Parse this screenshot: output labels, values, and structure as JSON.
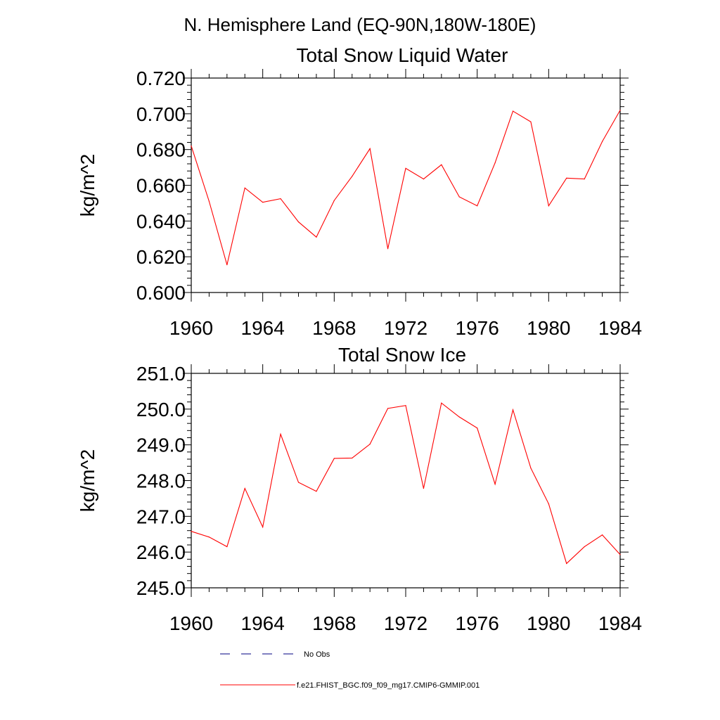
{
  "page_title": "N. Hemisphere Land (EQ-90N,180W-180E)",
  "legend": {
    "obs_label": "No Obs",
    "model_label": "f.e21.FHIST_BGC.f09_f09_mg17.CMIP6-GMMIP.001",
    "model_color": "#ff0000",
    "obs_color": "#000080"
  },
  "chart_data": [
    {
      "type": "line",
      "title": "Total Snow Liquid Water",
      "xlabel": "",
      "ylabel": "kg/m^2",
      "xlim": [
        1960,
        1984
      ],
      "ylim": [
        0.6,
        0.72
      ],
      "x_ticks": [
        1960,
        1964,
        1968,
        1972,
        1976,
        1980,
        1984
      ],
      "x_tick_labels": [
        "1960",
        "1964",
        "1968",
        "1972",
        "1976",
        "1980",
        "1984"
      ],
      "y_ticks": [
        0.6,
        0.62,
        0.64,
        0.66,
        0.68,
        0.7,
        0.72
      ],
      "y_tick_labels": [
        "0.600",
        "0.620",
        "0.640",
        "0.660",
        "0.680",
        "0.700",
        "0.720"
      ],
      "grid": false,
      "series": [
        {
          "name": "f.e21.FHIST_BGC.f09_f09_mg17.CMIP6-GMMIP.001",
          "color": "#ff0000",
          "x": [
            1960,
            1961,
            1962,
            1963,
            1964,
            1965,
            1966,
            1967,
            1968,
            1969,
            1970,
            1971,
            1972,
            1973,
            1974,
            1975,
            1976,
            1977,
            1978,
            1979,
            1980,
            1981,
            1982,
            1983,
            1984
          ],
          "values": [
            0.682,
            0.651,
            0.6155,
            0.6585,
            0.6505,
            0.6525,
            0.6395,
            0.631,
            0.6515,
            0.665,
            0.6805,
            0.6245,
            0.6695,
            0.6635,
            0.6715,
            0.6535,
            0.6485,
            0.6725,
            0.7015,
            0.6955,
            0.6485,
            0.664,
            0.6635,
            0.6845,
            0.702
          ]
        }
      ]
    },
    {
      "type": "line",
      "title": "Total Snow Ice",
      "xlabel": "",
      "ylabel": "kg/m^2",
      "xlim": [
        1960,
        1984
      ],
      "ylim": [
        245.0,
        251.0
      ],
      "x_ticks": [
        1960,
        1964,
        1968,
        1972,
        1976,
        1980,
        1984
      ],
      "x_tick_labels": [
        "1960",
        "1964",
        "1968",
        "1972",
        "1976",
        "1980",
        "1984"
      ],
      "y_ticks": [
        245.0,
        246.0,
        247.0,
        248.0,
        249.0,
        250.0,
        251.0
      ],
      "y_tick_labels": [
        "245.0",
        "246.0",
        "247.0",
        "248.0",
        "249.0",
        "250.0",
        "251.0"
      ],
      "grid": false,
      "series": [
        {
          "name": "f.e21.FHIST_BGC.f09_f09_mg17.CMIP6-GMMIP.001",
          "color": "#ff0000",
          "x": [
            1960,
            1961,
            1962,
            1963,
            1964,
            1965,
            1966,
            1967,
            1968,
            1969,
            1970,
            1971,
            1972,
            1973,
            1974,
            1975,
            1976,
            1977,
            1978,
            1979,
            1980,
            1981,
            1982,
            1983,
            1984
          ],
          "values": [
            246.58,
            246.42,
            246.15,
            247.78,
            246.7,
            249.3,
            247.95,
            247.7,
            248.62,
            248.63,
            249.02,
            250.02,
            250.1,
            247.78,
            250.17,
            249.78,
            249.47,
            247.9,
            249.98,
            248.35,
            247.35,
            245.68,
            246.15,
            246.48,
            245.93
          ]
        }
      ]
    }
  ]
}
